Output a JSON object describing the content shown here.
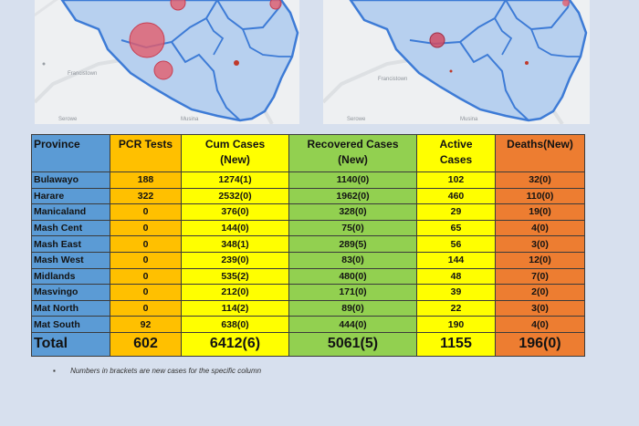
{
  "maps": {
    "left_label": "Francistown",
    "left_label2": "Serowe",
    "left_label3": "Musina",
    "right_label": "Francistown",
    "right_label2": "Serowe",
    "right_label3": "Musina"
  },
  "table": {
    "headers": {
      "province": "Province",
      "pcr": "PCR Tests",
      "cum_line1": "Cum Cases",
      "cum_line2": "(New)",
      "rec_line1": "Recovered Cases",
      "rec_line2": "(New)",
      "act_line1": "Active",
      "act_line2": "Cases",
      "deaths": "Deaths(New)"
    },
    "rows": [
      {
        "province": "Bulawayo",
        "pcr": "188",
        "cum": "1274(1)",
        "rec": "1140(0)",
        "active": "102",
        "deaths": "32(0)"
      },
      {
        "province": "Harare",
        "pcr": "322",
        "cum": "2532(0)",
        "rec": "1962(0)",
        "active": "460",
        "deaths": "110(0)"
      },
      {
        "province": "Manicaland",
        "pcr": "0",
        "cum": "376(0)",
        "rec": "328(0)",
        "active": "29",
        "deaths": "19(0)"
      },
      {
        "province": "Mash Cent",
        "pcr": "0",
        "cum": "144(0)",
        "rec": "75(0)",
        "active": "65",
        "deaths": "4(0)"
      },
      {
        "province": "Mash East",
        "pcr": "0",
        "cum": "348(1)",
        "rec": "289(5)",
        "active": "56",
        "deaths": "3(0)"
      },
      {
        "province": "Mash West",
        "pcr": "0",
        "cum": "239(0)",
        "rec": "83(0)",
        "active": "144",
        "deaths": "12(0)"
      },
      {
        "province": "Midlands",
        "pcr": "0",
        "cum": "535(2)",
        "rec": "480(0)",
        "active": "48",
        "deaths": "7(0)"
      },
      {
        "province": "Masvingo",
        "pcr": "0",
        "cum": "212(0)",
        "rec": "171(0)",
        "active": "39",
        "deaths": "2(0)"
      },
      {
        "province": "Mat North",
        "pcr": "0",
        "cum": "114(2)",
        "rec": "89(0)",
        "active": "22",
        "deaths": "3(0)"
      },
      {
        "province": "Mat South",
        "pcr": "92",
        "cum": "638(0)",
        "rec": "444(0)",
        "active": "190",
        "deaths": "4(0)"
      }
    ],
    "total": {
      "label": "Total",
      "pcr": "602",
      "cum": "6412(6)",
      "rec": "5061(5)",
      "active": "1155",
      "deaths": "196(0)"
    }
  },
  "note": {
    "bullet": "▪",
    "text": "Numbers in brackets are new cases for the specific column"
  }
}
